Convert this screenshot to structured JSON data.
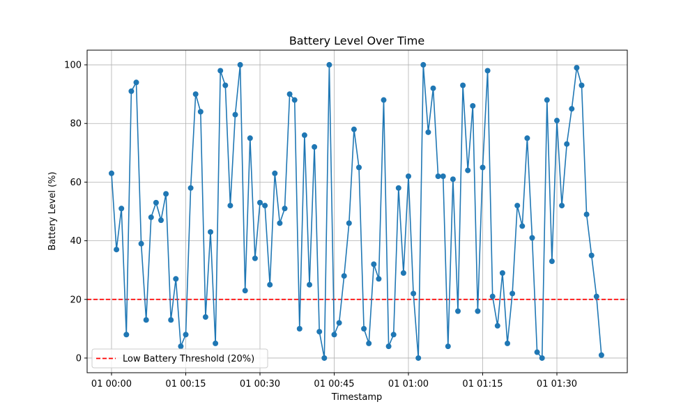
{
  "chart_data": {
    "type": "line",
    "title": "Battery Level Over Time",
    "xlabel": "Timestamp",
    "ylabel": "Battery Level (%)",
    "x_start": "01 00:00",
    "x_interval_minutes": 1,
    "x_tick_labels": [
      "01 00:00",
      "01 00:15",
      "01 00:30",
      "01 00:45",
      "01 01:00",
      "01 01:15",
      "01 01:30"
    ],
    "y_ticks": [
      0,
      20,
      40,
      60,
      80,
      100
    ],
    "ylim": [
      -5,
      105
    ],
    "grid": true,
    "legend_position": "lower-left",
    "series": [
      {
        "color": "#1f77b4",
        "marker": "circle",
        "values": [
          63,
          37,
          51,
          8,
          91,
          94,
          39,
          13,
          48,
          53,
          47,
          56,
          13,
          27,
          4,
          8,
          58,
          90,
          84,
          14,
          43,
          5,
          98,
          93,
          52,
          83,
          100,
          23,
          75,
          34,
          53,
          52,
          25,
          63,
          46,
          51,
          90,
          88,
          10,
          76,
          25,
          72,
          9,
          0,
          100,
          8,
          12,
          28,
          46,
          78,
          65,
          10,
          5,
          32,
          27,
          88,
          4,
          8,
          58,
          29,
          62,
          22,
          0,
          100,
          77,
          92,
          62,
          62,
          4,
          61,
          16,
          93,
          64,
          86,
          16,
          65,
          98,
          21,
          11,
          29,
          5,
          22,
          52,
          45,
          75,
          41,
          2,
          0,
          88,
          33,
          81,
          52,
          73,
          85,
          99,
          93,
          49,
          35,
          21,
          1
        ]
      }
    ],
    "threshold": {
      "value": 20,
      "label": "Low Battery Threshold (20%)",
      "color": "#ff0000",
      "style": "dashed"
    }
  }
}
